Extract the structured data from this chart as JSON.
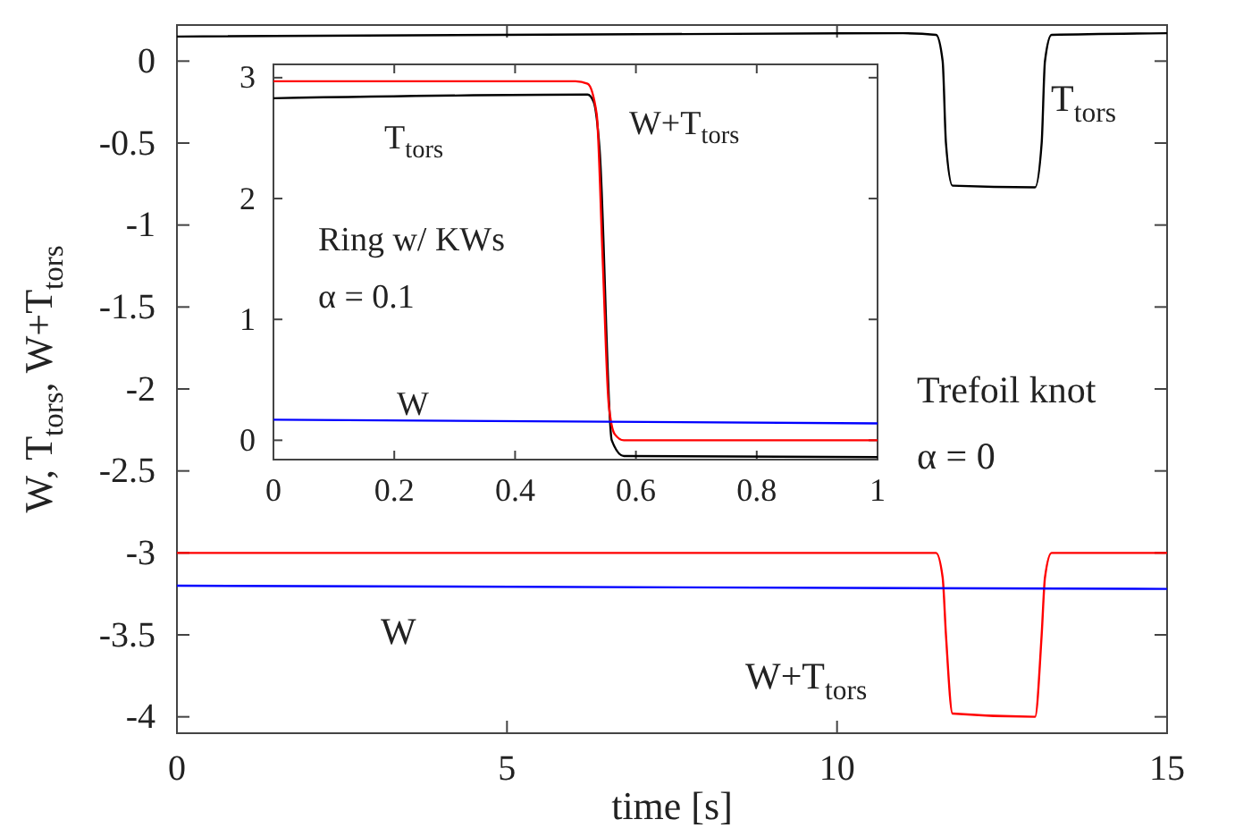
{
  "chart_data": [
    {
      "type": "line",
      "xlabel": "time  [s]",
      "ylabel": "W,  T$_{tors}$,  W+T$_{tors}$",
      "xlim": [
        0,
        15
      ],
      "xticks": [
        0,
        5,
        10,
        15
      ],
      "ylim": [
        -4.1,
        0.22
      ],
      "yticks": [
        -4,
        -3.5,
        -3,
        -2.5,
        -2,
        -1.5,
        -1,
        -0.5,
        0
      ],
      "series": [
        {
          "color": "#000000",
          "x": [
            0,
            11,
            11.5,
            11.6,
            11.65,
            11.75,
            13.0,
            13.1,
            13.15,
            13.25,
            15
          ],
          "values": [
            0.15,
            0.17,
            0.16,
            0.0,
            -0.5,
            -0.76,
            -0.77,
            -0.5,
            0.0,
            0.16,
            0.17
          ]
        },
        {
          "color": "#ff0000",
          "x": [
            0,
            11.5,
            11.6,
            11.65,
            11.75,
            13.0,
            13.1,
            13.15,
            13.25,
            15
          ],
          "values": [
            -3.0,
            -3.0,
            -3.15,
            -3.5,
            -3.98,
            -4.0,
            -3.5,
            -3.15,
            -3.0,
            -3.0
          ]
        },
        {
          "color": "#0000ff",
          "x": [
            0,
            15
          ],
          "values": [
            -3.2,
            -3.22
          ]
        }
      ],
      "annotations": [
        "T$_{tors}$",
        "W+T$_{tors}$",
        "W",
        "Trefoil knot",
        "α = 0"
      ]
    },
    {
      "type": "line",
      "xlim": [
        0,
        1
      ],
      "xticks": [
        0,
        0.2,
        0.4,
        0.6,
        0.8,
        1
      ],
      "ylim": [
        -0.16,
        3.11
      ],
      "yticks": [
        0,
        1,
        2,
        3
      ],
      "series": [
        {
          "color": "#000000",
          "x": [
            0,
            0.52,
            0.53,
            0.54,
            0.56,
            0.58,
            1
          ],
          "values": [
            2.83,
            2.86,
            2.8,
            2.4,
            0.0,
            -0.13,
            -0.14
          ]
        },
        {
          "color": "#ff0000",
          "x": [
            0,
            0.5,
            0.52,
            0.535,
            0.545,
            0.555,
            0.565,
            0.58,
            1
          ],
          "values": [
            2.97,
            2.97,
            2.95,
            2.7,
            1.5,
            0.3,
            0.05,
            0.0,
            0.0
          ]
        },
        {
          "color": "#0000ff",
          "x": [
            0,
            1
          ],
          "values": [
            0.17,
            0.14
          ]
        }
      ],
      "annotations": [
        "T$_{tors}$",
        "W+T$_{tors}$",
        "W",
        "Ring w/ KWs",
        "α = 0.1"
      ]
    }
  ]
}
